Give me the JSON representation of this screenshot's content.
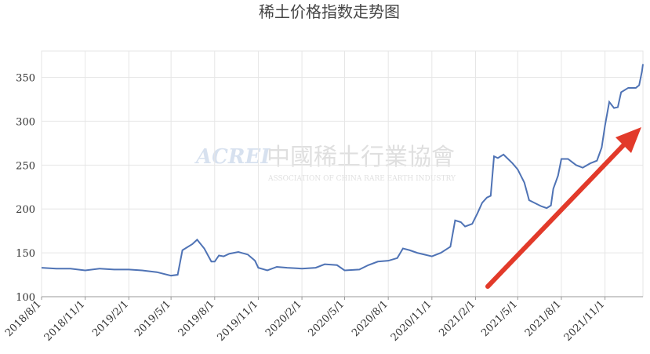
{
  "chart_data": {
    "type": "line",
    "title": "稀土价格指数走势图",
    "watermark": {
      "logo": "ACREI",
      "name": "中國稀土行業協會",
      "subtitle": "ASSOCIATION OF CHINA RARE EARTH INDUSTRY"
    },
    "x": [
      "2018/8/1",
      "2018/9/1",
      "2018/10/1",
      "2018/11/1",
      "2018/12/1",
      "2019/1/1",
      "2019/2/1",
      "2019/3/1",
      "2019/4/1",
      "2019/5/1",
      "2019/5/15",
      "2019/5/25",
      "2019/6/15",
      "2019/6/25",
      "2019/7/10",
      "2019/7/25",
      "2019/8/1",
      "2019/8/10",
      "2019/8/20",
      "2019/9/1",
      "2019/9/20",
      "2019/10/10",
      "2019/10/25",
      "2019/11/1",
      "2019/11/20",
      "2019/12/10",
      "2020/1/1",
      "2020/2/1",
      "2020/3/1",
      "2020/3/20",
      "2020/4/15",
      "2020/5/1",
      "2020/6/1",
      "2020/6/20",
      "2020/7/10",
      "2020/8/1",
      "2020/8/20",
      "2020/9/1",
      "2020/9/15",
      "2020/10/1",
      "2020/11/1",
      "2020/11/20",
      "2020/12/10",
      "2020/12/20",
      "2021/1/1",
      "2021/1/10",
      "2021/1/25",
      "2021/2/5",
      "2021/2/15",
      "2021/2/25",
      "2021/3/5",
      "2021/3/12",
      "2021/3/20",
      "2021/4/1",
      "2021/4/20",
      "2021/5/1",
      "2021/5/15",
      "2021/5/25",
      "2021/6/5",
      "2021/6/20",
      "2021/7/1",
      "2021/7/10",
      "2021/7/15",
      "2021/7/25",
      "2021/8/1",
      "2021/8/15",
      "2021/9/1",
      "2021/9/15",
      "2021/10/1",
      "2021/10/15",
      "2021/10/25",
      "2021/11/1",
      "2021/11/10",
      "2021/11/20",
      "2021/11/28",
      "2021/12/5",
      "2021/12/20",
      "2022/1/5",
      "2022/1/12",
      "2022/1/18",
      "2022/1/20"
    ],
    "series": [
      {
        "color": "#4f73b5",
        "values": [
          133,
          132,
          132,
          130,
          132,
          131,
          131,
          130,
          128,
          124,
          125,
          153,
          160,
          165,
          155,
          140,
          140,
          147,
          146,
          149,
          151,
          148,
          141,
          133,
          130,
          134,
          133,
          132,
          133,
          137,
          136,
          130,
          131,
          136,
          140,
          141,
          144,
          155,
          153,
          150,
          146,
          150,
          157,
          187,
          185,
          180,
          183,
          195,
          207,
          213,
          215,
          260,
          258,
          262,
          252,
          245,
          230,
          210,
          207,
          203,
          201,
          204,
          223,
          238,
          257,
          257,
          250,
          247,
          252,
          255,
          270,
          295,
          322,
          315,
          316,
          333,
          338,
          338,
          341,
          357,
          365
        ]
      }
    ],
    "xlim": [
      "2018/8/1",
      "2022/1/20"
    ],
    "xticks": [
      "2018/8/1",
      "2018/11/1",
      "2019/2/1",
      "2019/5/1",
      "2019/8/1",
      "2019/11/1",
      "2020/2/1",
      "2020/5/1",
      "2020/8/1",
      "2020/11/1",
      "2021/2/1",
      "2021/5/1",
      "2021/8/1",
      "2021/11/1"
    ],
    "ylim": [
      100,
      380
    ],
    "yticks": [
      100,
      150,
      200,
      250,
      300,
      350
    ],
    "grid": true
  }
}
